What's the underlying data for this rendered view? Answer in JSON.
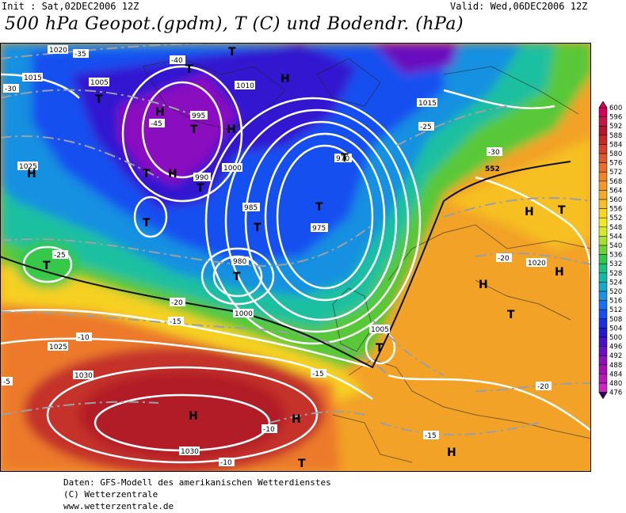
{
  "header": {
    "init": "Init : Sat,02DEC2006 12Z",
    "valid": "Valid: Wed,06DEC2006 12Z",
    "title": "500 hPa Geopot.(gpdm), T (C) und Bodendr. (hPa)"
  },
  "footer": {
    "line1": "Daten: GFS-Modell des amerikanischen Wetterdienstes",
    "line2": "(C) Wetterzentrale",
    "line3": "www.wetterzentrale.de"
  },
  "legend": {
    "levels": [
      "600",
      "596",
      "592",
      "588",
      "584",
      "580",
      "576",
      "572",
      "568",
      "564",
      "560",
      "556",
      "552",
      "548",
      "544",
      "540",
      "536",
      "532",
      "528",
      "524",
      "520",
      "516",
      "512",
      "508",
      "504",
      "500",
      "496",
      "492",
      "488",
      "484",
      "480",
      "476"
    ],
    "colors": [
      "#d4005a",
      "#c21848",
      "#b2182b",
      "#c62828",
      "#d6402a",
      "#e0582a",
      "#ea6e2a",
      "#f08228",
      "#f29828",
      "#f4ac28",
      "#f6c024",
      "#f8d624",
      "#f2e824",
      "#d6e82a",
      "#a8e030",
      "#6cd238",
      "#34c84a",
      "#1cc080",
      "#18b8a8",
      "#18a8c8",
      "#1894e0",
      "#1870f0",
      "#1850f0",
      "#1830e0",
      "#2418d0",
      "#4810c8",
      "#6a10c0",
      "#8a10b8",
      "#a010b0",
      "#b818b8",
      "#c828c0",
      "#300850"
    ]
  },
  "map": {
    "pressure_labels": [
      "1020",
      "1015",
      "1005",
      "1000",
      "995",
      "990",
      "985",
      "980",
      "975",
      "970",
      "1010",
      "1025",
      "1030"
    ],
    "temperature_labels": [
      "-35",
      "-40",
      "-45",
      "-30",
      "-25",
      "-20",
      "-15",
      "-10",
      "-5"
    ],
    "geopotential_label": "552",
    "pressure_centers": [
      "H",
      "T"
    ]
  }
}
